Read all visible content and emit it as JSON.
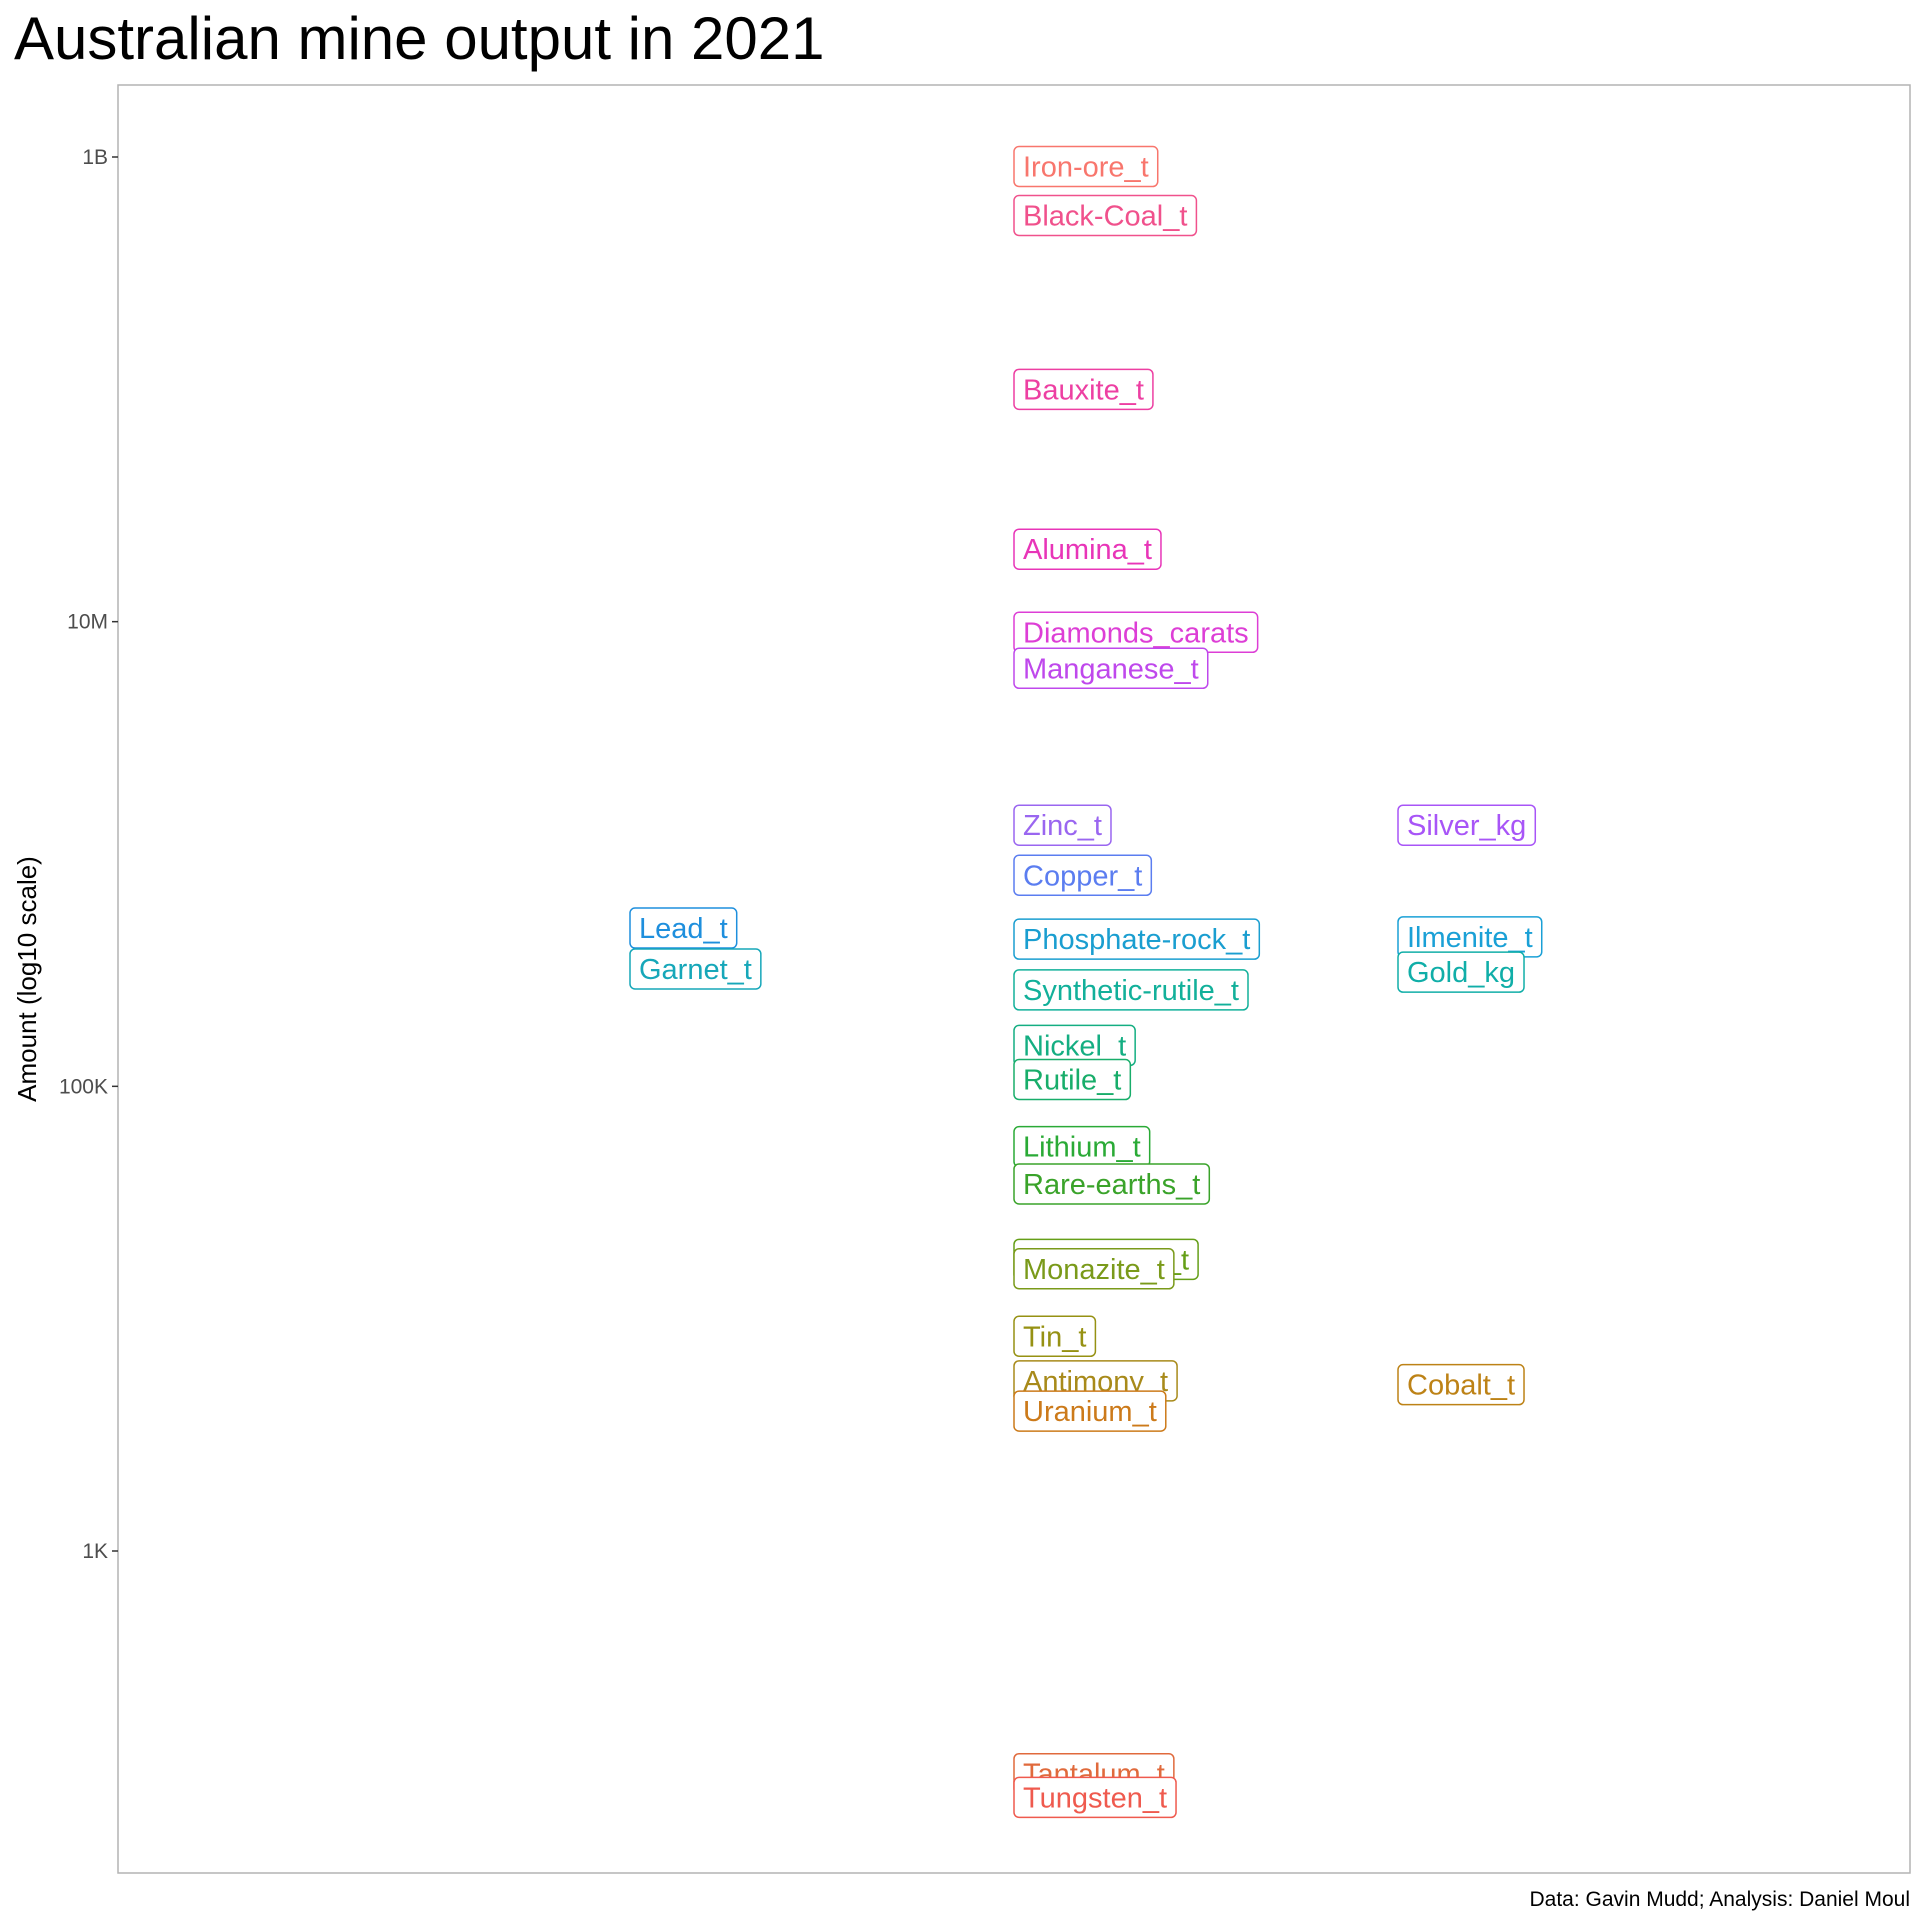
{
  "chart_data": {
    "type": "scatter",
    "title": "Australian mine output in 2021",
    "caption": "Data: Gavin Mudd; Analysis: Daniel Moul",
    "xlabel": "",
    "ylabel": "Amount (log10 scale)",
    "y_scale": "log10",
    "ylim": [
      60,
      2000000000
    ],
    "xlim": [
      0,
      14
    ],
    "grid": false,
    "legend": "none",
    "y_ticks": [
      {
        "value": 1000,
        "label": "1K"
      },
      {
        "value": 100000,
        "label": "100K"
      },
      {
        "value": 10000000,
        "label": "10M"
      },
      {
        "value": 1000000000,
        "label": "1B"
      }
    ],
    "points": [
      {
        "label": "Iron-ore_t",
        "x": 7,
        "y": 910000000,
        "color": "#F8766D"
      },
      {
        "label": "Black-Coal_t",
        "x": 7,
        "y": 560000000,
        "color": "#F0518C"
      },
      {
        "label": "Bauxite_t",
        "x": 7,
        "y": 100000000,
        "color": "#ED3FA2"
      },
      {
        "label": "Alumina_t",
        "x": 7,
        "y": 20500000,
        "color": "#E835B8"
      },
      {
        "label": "Diamonds_carats",
        "x": 7,
        "y": 9000000,
        "color": "#DD3ED6"
      },
      {
        "label": "Manganese_t",
        "x": 7,
        "y": 6300000,
        "color": "#BF48EC"
      },
      {
        "label": "Zinc_t",
        "x": 7,
        "y": 1330000,
        "color": "#9A66F0"
      },
      {
        "label": "Silver_kg",
        "x": 10,
        "y": 1330000,
        "color": "#A855F7"
      },
      {
        "label": "Copper_t",
        "x": 7,
        "y": 810000,
        "color": "#5B7DF0"
      },
      {
        "label": "Lead_t",
        "x": 4,
        "y": 480000,
        "color": "#1E8FDD"
      },
      {
        "label": "Phosphate-rock_t",
        "x": 7,
        "y": 430000,
        "color": "#1A9ED0"
      },
      {
        "label": "Ilmenite_t",
        "x": 10,
        "y": 440000,
        "color": "#1AA0D6"
      },
      {
        "label": "Garnet_t",
        "x": 4,
        "y": 320000,
        "color": "#16A7B9"
      },
      {
        "label": "Gold_kg",
        "x": 10,
        "y": 310000,
        "color": "#10AEA8"
      },
      {
        "label": "Synthetic-rutile_t",
        "x": 7,
        "y": 260000,
        "color": "#12B09A"
      },
      {
        "label": "Nickel_t",
        "x": 7,
        "y": 150000,
        "color": "#14AE82"
      },
      {
        "label": "Rutile_t",
        "x": 7,
        "y": 107000,
        "color": "#18AD6A"
      },
      {
        "label": "Lithium_t",
        "x": 7,
        "y": 55000,
        "color": "#2AAA36"
      },
      {
        "label": "Rare-earths_t",
        "x": 7,
        "y": 38000,
        "color": "#3AA32A"
      },
      {
        "label": "Leucoxene_t",
        "x": 7,
        "y": 18000,
        "color": "#659F18"
      },
      {
        "label": "Monazite_t",
        "x": 7,
        "y": 16400,
        "color": "#7A9A1A"
      },
      {
        "label": "Tin_t",
        "x": 7,
        "y": 8400,
        "color": "#969113"
      },
      {
        "label": "Antimony_t",
        "x": 7,
        "y": 5400,
        "color": "#A88A1A"
      },
      {
        "label": "Cobalt_t",
        "x": 10,
        "y": 5200,
        "color": "#BD8216"
      },
      {
        "label": "Uranium_t",
        "x": 7,
        "y": 4000,
        "color": "#CC7A1A"
      },
      {
        "label": "Tantalum_t",
        "x": 7,
        "y": 110,
        "color": "#E06A3C"
      },
      {
        "label": "Tungsten_t",
        "x": 7,
        "y": 87,
        "color": "#EF5A4E"
      }
    ]
  }
}
